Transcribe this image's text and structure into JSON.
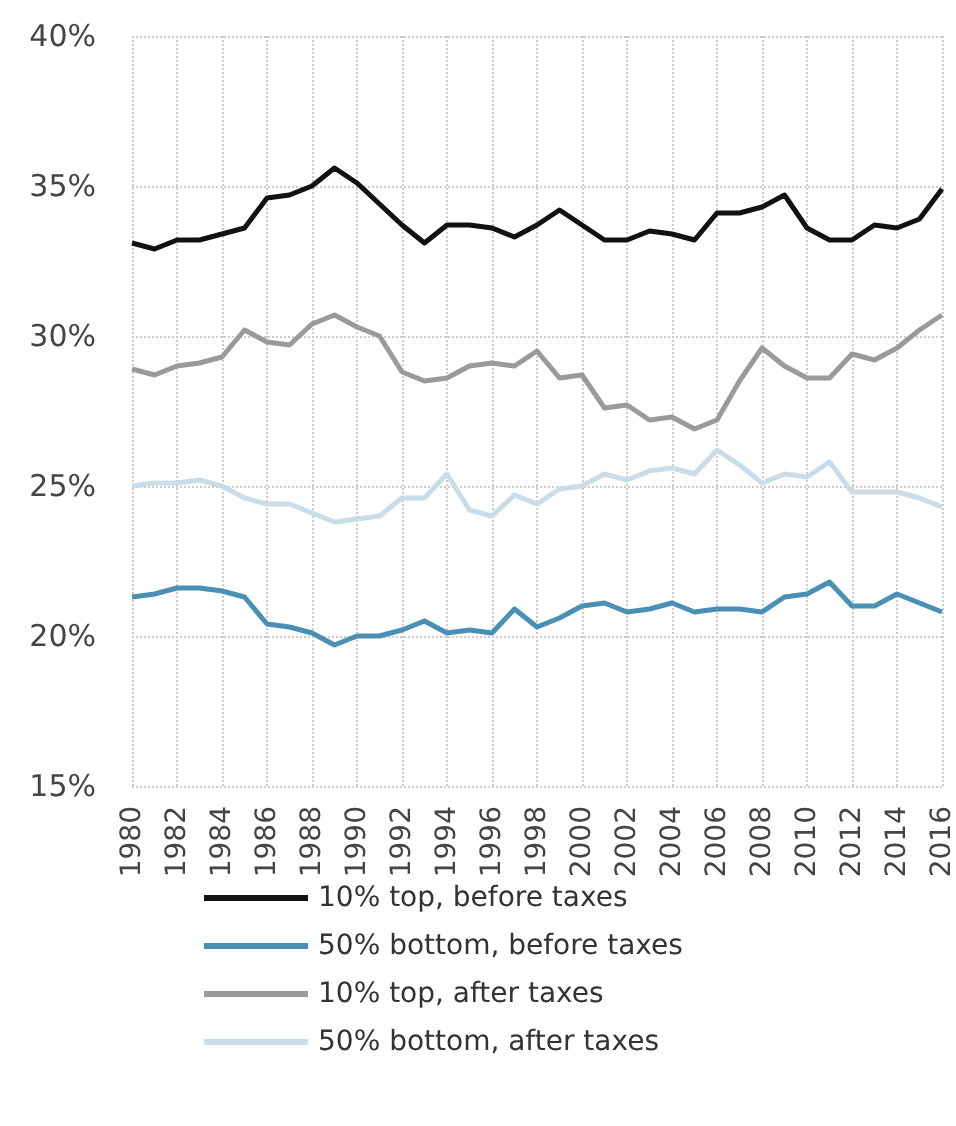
{
  "chart_data": {
    "type": "line",
    "x": [
      1980,
      1981,
      1982,
      1983,
      1984,
      1985,
      1986,
      1987,
      1988,
      1989,
      1990,
      1991,
      1992,
      1993,
      1994,
      1995,
      1996,
      1997,
      1998,
      1999,
      2000,
      2001,
      2002,
      2003,
      2004,
      2005,
      2006,
      2007,
      2008,
      2009,
      2010,
      2011,
      2012,
      2013,
      2014,
      2015,
      2016
    ],
    "series": [
      {
        "name": "10% top, before taxes",
        "color": "#111111",
        "values": [
          33.1,
          32.9,
          33.2,
          33.2,
          33.4,
          33.6,
          34.6,
          34.7,
          35.0,
          35.6,
          35.1,
          34.4,
          33.7,
          33.1,
          33.7,
          33.7,
          33.6,
          33.3,
          33.7,
          34.2,
          33.7,
          33.2,
          33.2,
          33.5,
          33.4,
          33.2,
          34.1,
          34.1,
          34.3,
          34.7,
          33.6,
          33.2,
          33.2,
          33.7,
          33.6,
          33.9,
          34.9
        ]
      },
      {
        "name": "50% bottom, before taxes",
        "color": "#4a90b4",
        "values": [
          21.3,
          21.4,
          21.6,
          21.6,
          21.5,
          21.3,
          20.4,
          20.3,
          20.1,
          19.7,
          20.0,
          20.0,
          20.2,
          20.5,
          20.1,
          20.2,
          20.1,
          20.9,
          20.3,
          20.6,
          21.0,
          21.1,
          20.8,
          20.9,
          21.1,
          20.8,
          20.9,
          20.9,
          20.8,
          21.3,
          21.4,
          21.8,
          21.0,
          21.0,
          21.4,
          21.1,
          20.8
        ]
      },
      {
        "name": "10% top, after taxes",
        "color": "#9a9a9a",
        "values": [
          28.9,
          28.7,
          29.0,
          29.1,
          29.3,
          30.2,
          29.8,
          29.7,
          30.4,
          30.7,
          30.3,
          30.0,
          28.8,
          28.5,
          28.6,
          29.0,
          29.1,
          29.0,
          29.5,
          28.6,
          28.7,
          27.6,
          27.7,
          27.2,
          27.3,
          26.9,
          27.2,
          28.5,
          29.6,
          29.0,
          28.6,
          28.6,
          29.4,
          29.2,
          29.6,
          30.2,
          30.7
        ]
      },
      {
        "name": "50% bottom, after taxes",
        "color": "#c9dce8",
        "values": [
          25.0,
          25.1,
          25.1,
          25.2,
          25.0,
          24.6,
          24.4,
          24.4,
          24.1,
          23.8,
          23.9,
          24.0,
          24.6,
          24.6,
          25.4,
          24.2,
          24.0,
          24.7,
          24.4,
          24.9,
          25.0,
          25.4,
          25.2,
          25.5,
          25.6,
          25.4,
          26.2,
          25.7,
          25.1,
          25.4,
          25.3,
          25.8,
          24.8,
          24.8,
          24.8,
          24.6,
          24.3
        ]
      }
    ],
    "xlim": [
      1980,
      2016
    ],
    "xticks": [
      1980,
      1982,
      1984,
      1986,
      1988,
      1990,
      1992,
      1994,
      1996,
      1998,
      2000,
      2002,
      2004,
      2006,
      2008,
      2010,
      2012,
      2014,
      2016
    ],
    "ylim": [
      15,
      40
    ],
    "yticks": [
      {
        "value": 15,
        "label": "15%"
      },
      {
        "value": 20,
        "label": "20%"
      },
      {
        "value": 25,
        "label": "25%"
      },
      {
        "value": 30,
        "label": "30%"
      },
      {
        "value": 35,
        "label": "35%"
      },
      {
        "value": 40,
        "label": "40%"
      }
    ],
    "grid": true,
    "legend": "bottom",
    "marker": "none",
    "line_style": "solid"
  }
}
